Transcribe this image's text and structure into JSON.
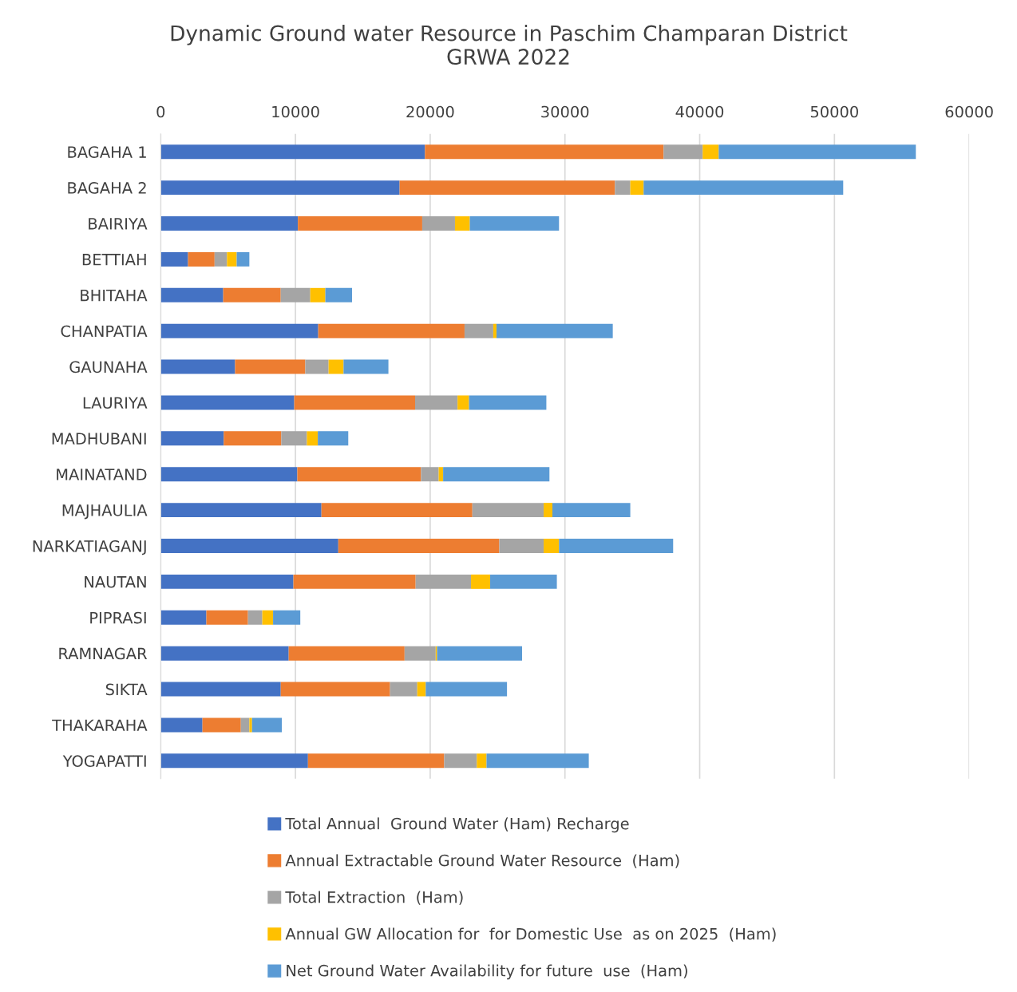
{
  "chart_data": {
    "type": "bar",
    "orientation": "horizontal",
    "stacked": true,
    "title": "Dynamic Ground water Resource in Paschim Champaran District\nGRWA 2022",
    "categories": [
      "BAGAHA 1",
      "BAGAHA 2",
      "BAIRIYA",
      "BETTIAH",
      "BHITAHA",
      "CHANPATIA",
      "GAUNAHA",
      "LAURIYA",
      "MADHUBANI",
      "MAINATAND",
      "MAJHAULIA",
      "NARKATIAGANJ",
      "NAUTAN",
      "PIPRASI",
      "RAMNAGAR",
      "SIKTA",
      "THAKARAHA",
      "YOGAPATTI"
    ],
    "series": [
      {
        "name": "Total Annual  Ground Water (Ham) Recharge",
        "color": "#4472c4",
        "values": [
          19610,
          17730,
          10180,
          2030,
          4640,
          11690,
          5520,
          9910,
          4680,
          10140,
          11930,
          13180,
          9850,
          3390,
          9500,
          8910,
          3100,
          10930
        ]
      },
      {
        "name": "Annual Extractable Ground Water Resource  (Ham)",
        "color": "#ed7d31",
        "values": [
          17710,
          15980,
          9230,
          1970,
          4270,
          10860,
          5210,
          8970,
          4270,
          9180,
          11200,
          11950,
          9070,
          3090,
          8600,
          8110,
          2850,
          10110
        ]
      },
      {
        "name": "Total Extraction  (Ham)",
        "color": "#a5a5a5",
        "values": [
          2900,
          1140,
          2430,
          920,
          2190,
          2130,
          1730,
          3150,
          1900,
          1310,
          5290,
          3290,
          4110,
          1060,
          2310,
          2020,
          630,
          2420
        ]
      },
      {
        "name": "Annual GW Allocation for  for Domestic Use  as on 2025  (Ham)",
        "color": "#ffc000",
        "values": [
          1190,
          990,
          1100,
          720,
          1120,
          240,
          1110,
          850,
          810,
          330,
          650,
          1140,
          1420,
          800,
          100,
          630,
          200,
          720
        ]
      },
      {
        "name": "Net Ground Water Availability for future  use  (Ham)",
        "color": "#5b9bd5",
        "values": [
          14630,
          14810,
          6620,
          940,
          1980,
          8630,
          3330,
          5740,
          2260,
          7890,
          5780,
          8470,
          4950,
          2020,
          6310,
          6030,
          2210,
          7590
        ]
      }
    ],
    "xlim": [
      0,
      60000
    ],
    "xticks": [
      0,
      10000,
      20000,
      30000,
      40000,
      50000,
      60000
    ],
    "grid": "x",
    "legend": "bottom"
  }
}
